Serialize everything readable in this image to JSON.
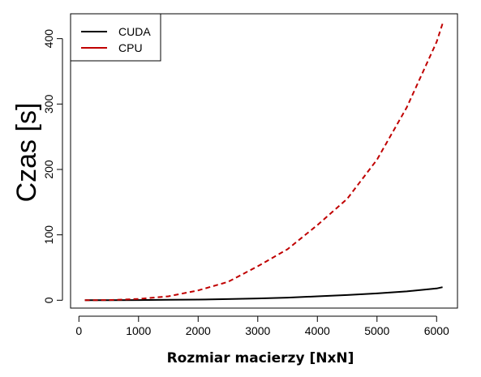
{
  "chart_data": {
    "type": "line",
    "xlabel": "Rozmiar macierzy [NxN]",
    "ylabel": "Czas [s]",
    "xlim": [
      -140,
      6350
    ],
    "ylim": [
      -12,
      438
    ],
    "xticks": [
      0,
      1000,
      2000,
      3000,
      4000,
      5000,
      6000
    ],
    "yticks": [
      0,
      100,
      200,
      300,
      400
    ],
    "xtick_labels": [
      "0",
      "1000",
      "2000",
      "3000",
      "4000",
      "5000",
      "6000"
    ],
    "ytick_labels": [
      "0",
      "100",
      "200",
      "300",
      "400"
    ],
    "legend_position": "top-left",
    "grid": false,
    "series": [
      {
        "name": "CUDA",
        "color": "#000000",
        "style": "solid",
        "x": [
          100,
          500,
          1000,
          1500,
          2000,
          2500,
          3000,
          3500,
          4000,
          4500,
          5000,
          5500,
          6000,
          6100
        ],
        "y": [
          0,
          0.1,
          0.3,
          0.6,
          1.0,
          1.8,
          2.8,
          4.0,
          6.0,
          8.0,
          10.5,
          13.5,
          18.0,
          20.0
        ]
      },
      {
        "name": "CPU",
        "color": "#c00000",
        "style": "dashed",
        "x": [
          100,
          500,
          1000,
          1500,
          2000,
          2500,
          3000,
          3500,
          4000,
          4500,
          5000,
          5500,
          6000,
          6100
        ],
        "y": [
          0,
          0.3,
          2,
          6,
          15,
          28,
          52,
          78,
          115,
          155,
          215,
          295,
          395,
          423
        ]
      }
    ]
  }
}
